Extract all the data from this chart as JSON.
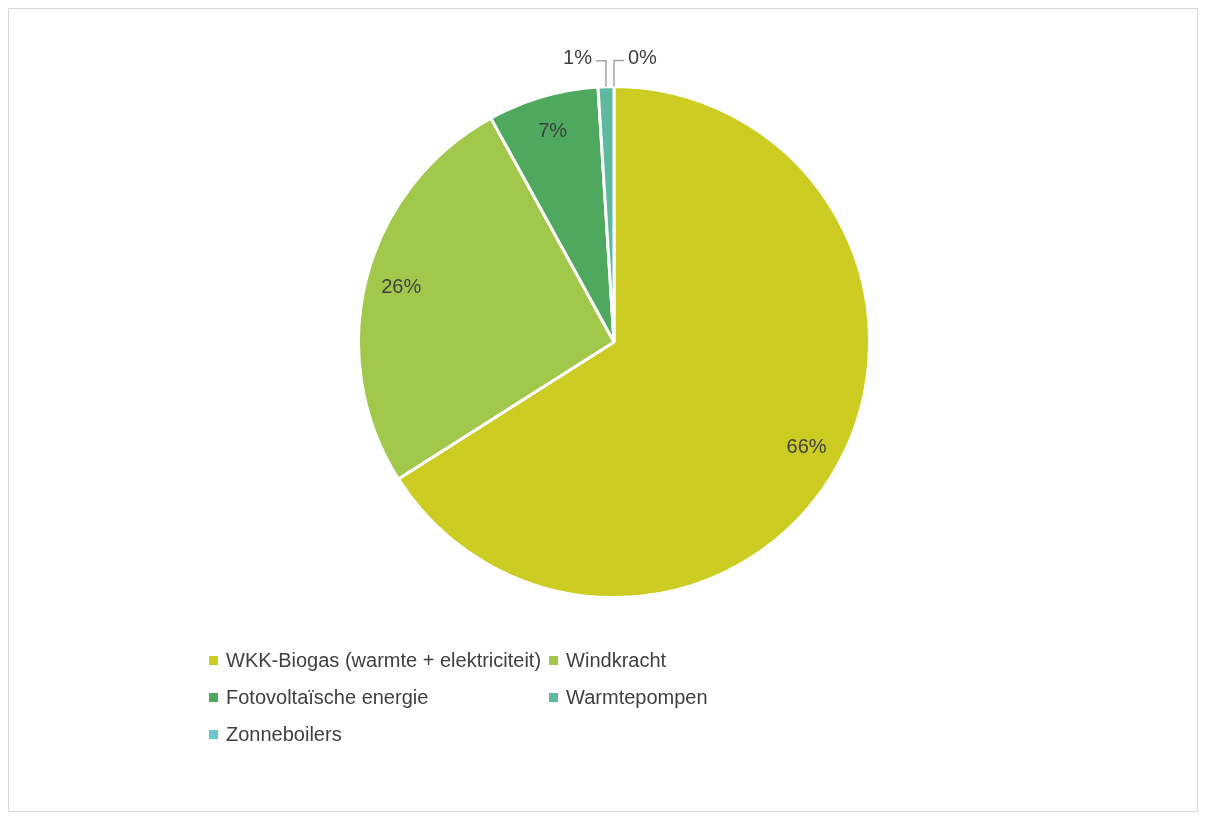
{
  "chart_data": {
    "type": "pie",
    "categories": [
      "WKK-Biogas (warmte + elektriciteit)",
      "Windkracht",
      "Fotovoltaïsche energie",
      "Warmtepompen",
      "Zonneboilers"
    ],
    "values": [
      66,
      26,
      7,
      1,
      0
    ],
    "colors": [
      "#cccc22",
      "#a1c84a",
      "#4ea85d",
      "#5fb9a0",
      "#6cc7d0"
    ],
    "value_labels": [
      "66%",
      "26%",
      "7%",
      "1%",
      "0%"
    ],
    "legend": "bottom"
  }
}
